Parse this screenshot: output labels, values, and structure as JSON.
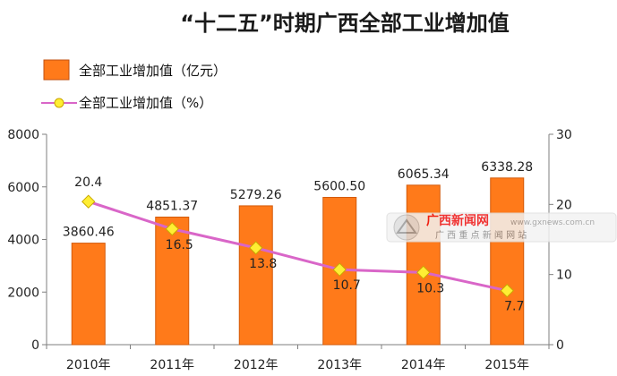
{
  "chart_data": {
    "type": "bar+line",
    "title": "“十二五”时期广西全部工业增加值",
    "categories": [
      "2010年",
      "2011年",
      "2012年",
      "2013年",
      "2014年",
      "2015年"
    ],
    "series": [
      {
        "name": "全部工业增加值（亿元）",
        "type": "bar",
        "axis": "left",
        "values": [
          3860.46,
          4851.37,
          5279.26,
          5600.5,
          6065.34,
          6338.28
        ],
        "labels": [
          "3860.46",
          "4851.37",
          "5279.26",
          "5600.50",
          "6065.34",
          "6338.28"
        ],
        "color": "#ff7a1a"
      },
      {
        "name": "全部工业增加值（%）",
        "type": "line",
        "axis": "right",
        "values": [
          20.4,
          16.5,
          13.8,
          10.7,
          10.3,
          7.7
        ],
        "labels": [
          "20.4",
          "16.5",
          "13.8",
          "10.7",
          "10.3",
          "7.7"
        ],
        "color": "#d966c8",
        "marker_color": "#ffee33"
      }
    ],
    "y_left": {
      "min": 0,
      "max": 8000,
      "ticks": [
        "0",
        "2000",
        "4000",
        "6000",
        "8000"
      ]
    },
    "y_right": {
      "min": 0,
      "max": 30,
      "ticks": [
        "0",
        "10",
        "20",
        "30"
      ]
    },
    "legend_position": "top-left",
    "grid": false
  },
  "watermark": {
    "name": "广西新闻网",
    "url": "www.gxnews.com.cn",
    "slogan": "广 西 重 点 新 闻 网 站"
  }
}
